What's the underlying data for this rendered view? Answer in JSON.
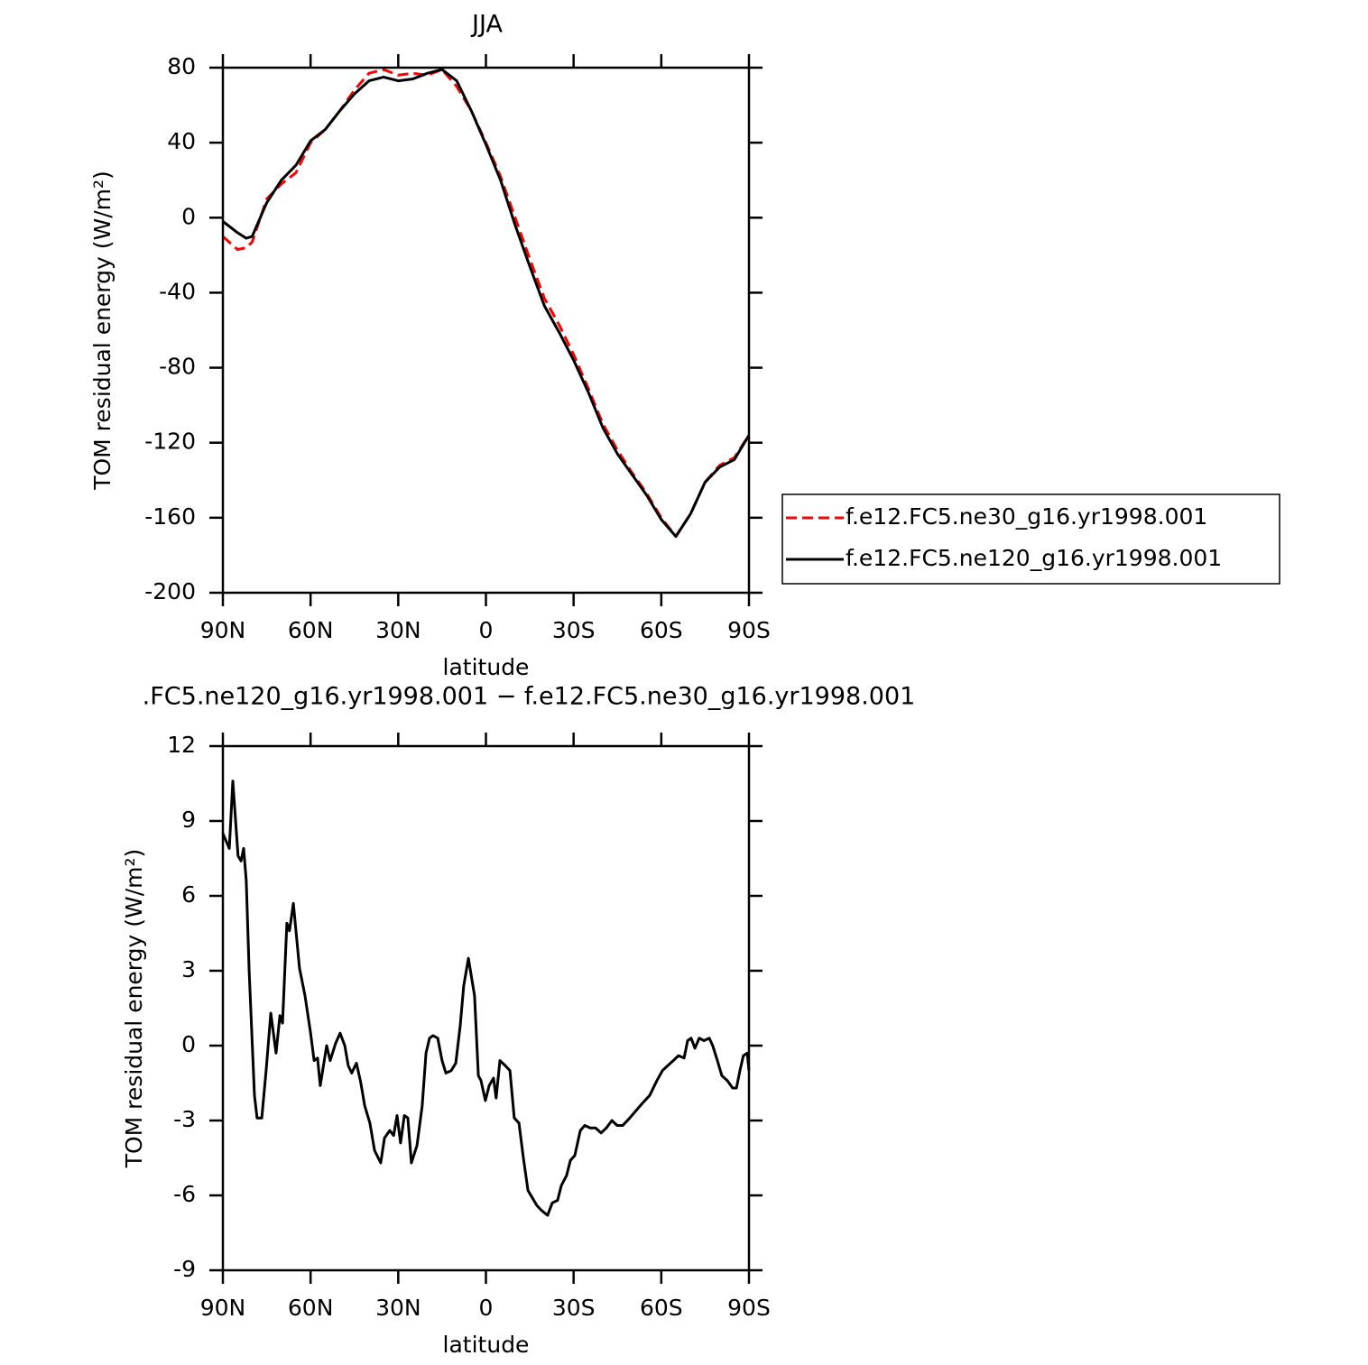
{
  "chart_data": [
    {
      "type": "line",
      "title": "JJA",
      "xlabel": "latitude",
      "ylabel": "TOM residual energy (W/m²)",
      "xlim": [
        90,
        -90
      ],
      "ylim": [
        -200,
        80
      ],
      "xticks": [
        {
          "value": 90,
          "label": "90N"
        },
        {
          "value": 60,
          "label": "60N"
        },
        {
          "value": 30,
          "label": "30N"
        },
        0,
        {
          "value": -30,
          "label": "30S"
        },
        {
          "value": -60,
          "label": "60S"
        },
        {
          "value": -90,
          "label": "90S"
        }
      ],
      "yticks": [
        80,
        40,
        0,
        -40,
        -80,
        -120,
        -160,
        -200
      ],
      "legend": "right",
      "x": [
        90,
        85,
        82,
        80,
        75,
        70,
        65,
        60,
        55,
        50,
        45,
        40,
        35,
        30,
        25,
        20,
        15,
        10,
        5,
        0,
        -5,
        -10,
        -15,
        -20,
        -25,
        -30,
        -35,
        -40,
        -45,
        -50,
        -55,
        -60,
        -65,
        -70,
        -75,
        -80,
        -85,
        -90
      ],
      "series": [
        {
          "name": "f.e12.FC5.ne30_g16.yr1998.001",
          "color": "#ff0000",
          "dashed": true,
          "values": [
            -10,
            -17,
            -16,
            -13,
            10,
            18,
            24,
            40,
            47,
            57,
            68,
            77,
            79,
            76,
            77,
            76,
            79,
            70,
            57,
            40,
            22,
            0,
            -22,
            -43,
            -57,
            -73,
            -91,
            -110,
            -124,
            -136,
            -147,
            -160,
            -170,
            -158,
            -141,
            -132,
            -128,
            -116
          ]
        },
        {
          "name": "f.e12.FC5.ne120_g16.yr1998.001",
          "color": "#000000",
          "dashed": false,
          "values": [
            -2,
            -8,
            -11,
            -10,
            8,
            20,
            28,
            41,
            47,
            57,
            66,
            73,
            75,
            73,
            74,
            77,
            79,
            73,
            57,
            39,
            20,
            -4,
            -26,
            -47,
            -61,
            -76,
            -93,
            -112,
            -126,
            -137,
            -148,
            -161,
            -170,
            -158,
            -141,
            -133,
            -129,
            -116
          ]
        }
      ]
    },
    {
      "type": "line",
      "title": ".FC5.ne120_g16.yr1998.001 − f.e12.FC5.ne30_g16.yr1998.001",
      "xlabel": "latitude",
      "ylabel": "TOM residual energy (W/m²)",
      "xlim": [
        90,
        -90
      ],
      "ylim": [
        -9,
        12
      ],
      "xticks": [
        {
          "value": 90,
          "label": "90N"
        },
        {
          "value": 60,
          "label": "60N"
        },
        {
          "value": 30,
          "label": "30N"
        },
        0,
        {
          "value": -30,
          "label": "30S"
        },
        {
          "value": -60,
          "label": "60S"
        },
        {
          "value": -90,
          "label": "90S"
        }
      ],
      "yticks": [
        12,
        9,
        6,
        3,
        0,
        -3,
        -6,
        -9
      ],
      "x": [
        90,
        87.8,
        86.6,
        84.8,
        83.8,
        82.9,
        82.0,
        81.0,
        79.2,
        78.3,
        76.7,
        75.2,
        73.6,
        71.8,
        70.5,
        69.6,
        68.1,
        67.2,
        65.9,
        63.8,
        61.9,
        60.0,
        58.8,
        57.6,
        56.7,
        54.5,
        53.3,
        51.4,
        49.9,
        48.3,
        47.1,
        45.9,
        44.3,
        42.8,
        41.5,
        39.7,
        38.1,
        36.0,
        34.7,
        32.9,
        31.6,
        30.4,
        29.2,
        27.9,
        26.7,
        25.5,
        23.6,
        21.8,
        20.5,
        19.3,
        18.1,
        16.5,
        15.0,
        13.7,
        11.9,
        10.3,
        8.8,
        7.6,
        6.0,
        3.9,
        2.6,
        1.7,
        0.2,
        -1.1,
        -2.6,
        -3.5,
        -4.8,
        -6.6,
        -8.2,
        -9.7,
        -11.3,
        -12.8,
        -14.4,
        -15.9,
        -17.4,
        -19.0,
        -21.1,
        -22.7,
        -24.5,
        -25.8,
        -27.6,
        -28.9,
        -30.4,
        -32.3,
        -33.8,
        -35.7,
        -37.5,
        -39.4,
        -41.2,
        -43.1,
        -44.9,
        -46.8,
        -49.2,
        -51.4,
        -53.6,
        -56.0,
        -58.5,
        -60.4,
        -62.2,
        -64.1,
        -65.9,
        -67.8,
        -69.0,
        -70.2,
        -71.5,
        -73.0,
        -74.6,
        -76.4,
        -77.6,
        -79.2,
        -80.7,
        -82.6,
        -84.4,
        -85.7,
        -86.9,
        -88.1,
        -89.4,
        -90
      ],
      "series": [
        {
          "color": "#000000",
          "values": [
            8.5,
            7.9,
            10.6,
            7.6,
            7.4,
            7.9,
            6.6,
            3,
            -2.0,
            -2.9,
            -2.9,
            -1,
            1.3,
            -0.3,
            1.2,
            0.9,
            4.9,
            4.6,
            5.7,
            3.1,
            2,
            0.5,
            -0.6,
            -0.5,
            -1.6,
            0,
            -0.6,
            0.1,
            0.5,
            0,
            -0.8,
            -1.1,
            -0.7,
            -1.5,
            -2.4,
            -3.1,
            -4.2,
            -4.7,
            -3.7,
            -3.4,
            -3.6,
            -2.8,
            -3.9,
            -2.8,
            -2.9,
            -4.7,
            -4.0,
            -2.4,
            -0.3,
            0.3,
            0.4,
            0.3,
            -0.6,
            -1.1,
            -1.0,
            -0.7,
            0.8,
            2.4,
            3.5,
            2.0,
            -1.2,
            -1.4,
            -2.2,
            -1.6,
            -1.3,
            -2.1,
            -0.6,
            -0.8,
            -1.0,
            -2.9,
            -3.1,
            -4.5,
            -5.8,
            -6.1,
            -6.4,
            -6.6,
            -6.8,
            -6.3,
            -6.2,
            -5.6,
            -5.2,
            -4.6,
            -4.4,
            -3.4,
            -3.2,
            -3.3,
            -3.3,
            -3.5,
            -3.3,
            -3.0,
            -3.2,
            -3.2,
            -2.9,
            -2.6,
            -2.3,
            -2.0,
            -1.4,
            -1.0,
            -0.8,
            -0.6,
            -0.4,
            -0.5,
            0.2,
            0.3,
            -0.1,
            0.3,
            0.2,
            0.3,
            0,
            -0.6,
            -1.2,
            -1.4,
            -1.7,
            -1.7,
            -1.0,
            -0.4,
            -0.3,
            -1.0
          ]
        }
      ]
    }
  ]
}
